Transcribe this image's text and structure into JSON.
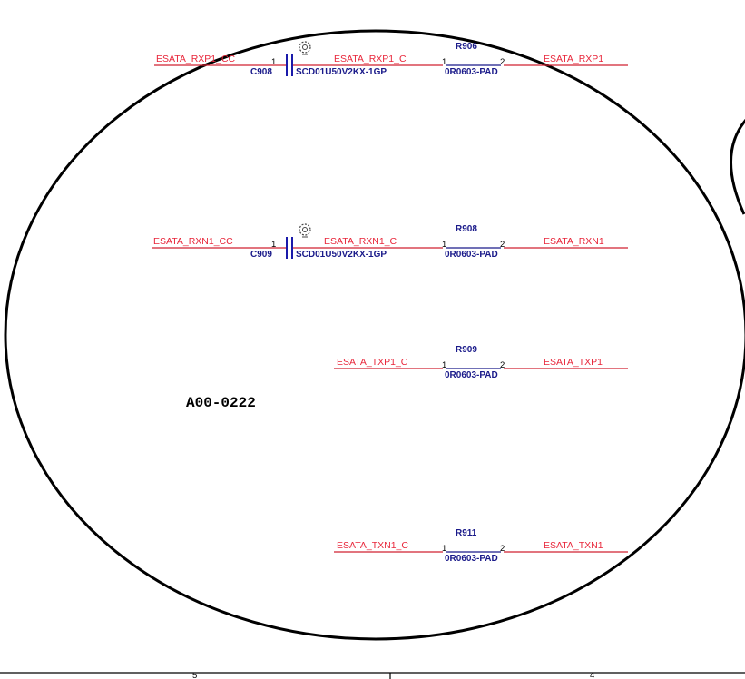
{
  "stamp": "A00-0222",
  "groups": [
    {
      "in_net": "ESATA_RXP1_CC",
      "cap_ref": "C908",
      "cap_part": "SCD01U50V2KX-1GP",
      "cap_pin": "1",
      "mid_net": "ESATA_RXP1_C",
      "res_ref": "R906",
      "res_part": "0R0603-PAD",
      "res_pin1": "1",
      "res_pin2": "2",
      "out_net": "ESATA_RXP1"
    },
    {
      "in_net": "ESATA_RXN1_CC",
      "cap_ref": "C909",
      "cap_part": "SCD01U50V2KX-1GP",
      "cap_pin": "1",
      "mid_net": "ESATA_RXN1_C",
      "res_ref": "R908",
      "res_part": "0R0603-PAD",
      "res_pin1": "1",
      "res_pin2": "2",
      "out_net": "ESATA_RXN1"
    },
    {
      "mid_net": "ESATA_TXP1_C",
      "res_ref": "R909",
      "res_part": "0R0603-PAD",
      "res_pin1": "1",
      "res_pin2": "2",
      "out_net": "ESATA_TXP1"
    },
    {
      "mid_net": "ESATA_TXN1_C",
      "res_ref": "R911",
      "res_part": "0R0603-PAD",
      "res_pin1": "1",
      "res_pin2": "2",
      "out_net": "ESATA_TXN1"
    }
  ],
  "footer": {
    "zone_left": "5",
    "zone_right": "4"
  }
}
